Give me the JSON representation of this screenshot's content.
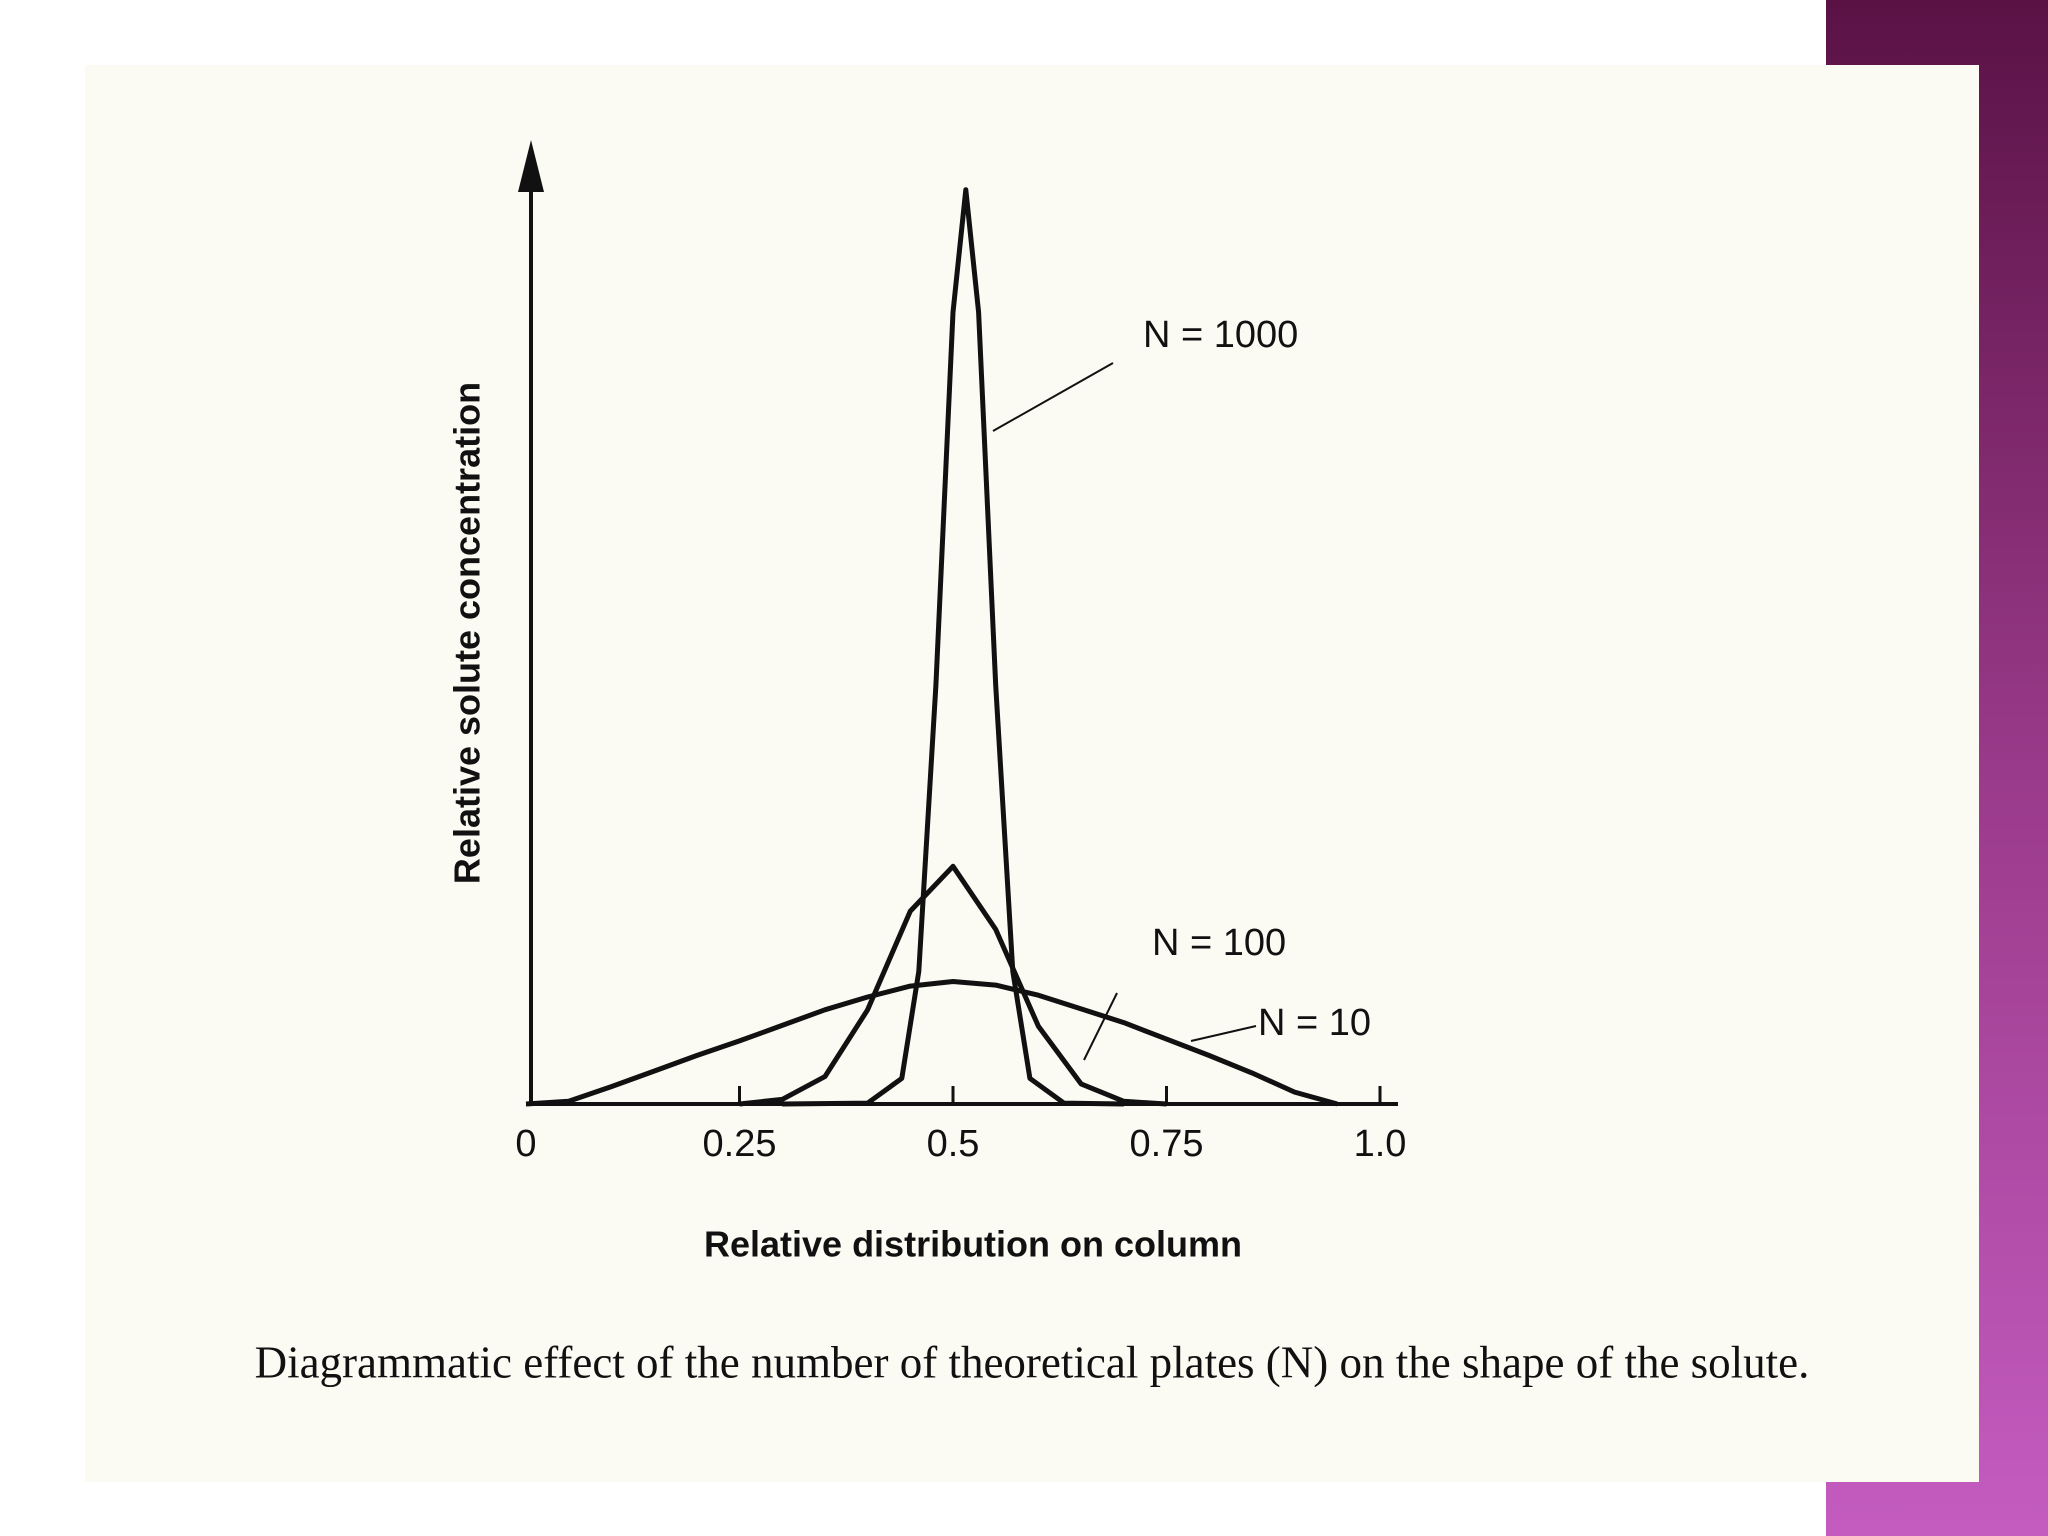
{
  "chart_data": {
    "type": "line",
    "y_axis_label": "Relative solute concentration",
    "x_axis_label": "Relative distribution on column",
    "caption": "Diagrammatic effect of the number of theoretical plates (N) on the shape of the solute.",
    "xlim": [
      0,
      1
    ],
    "ylim": [
      0,
      105
    ],
    "xticks": [
      0,
      0.25,
      0.5,
      0.75,
      {
        "value": 1,
        "label": "1.0"
      }
    ],
    "series": [
      {
        "name": "N = 1000",
        "color": "#111111",
        "x": [
          0.3,
          0.4,
          0.44,
          0.46,
          0.48,
          0.5,
          0.515,
          0.53,
          0.55,
          0.57,
          0.59,
          0.63,
          0.7
        ],
        "values": [
          0,
          0.1,
          2.8,
          14.5,
          45.8,
          86.6,
          100,
          86.6,
          45.8,
          14.5,
          2.8,
          0.1,
          0
        ]
      },
      {
        "name": "N = 100",
        "color": "#111111",
        "x": [
          0.25,
          0.3,
          0.35,
          0.4,
          0.45,
          0.5,
          0.55,
          0.6,
          0.65,
          0.7,
          0.75
        ],
        "values": [
          0,
          0.5,
          3.0,
          10.3,
          21.1,
          26,
          19.1,
          8.5,
          2.2,
          0.3,
          0
        ]
      },
      {
        "name": "N = 10",
        "color": "#111111",
        "x": [
          0,
          0.05,
          0.1,
          0.15,
          0.2,
          0.25,
          0.3,
          0.35,
          0.4,
          0.45,
          0.5,
          0.55,
          0.6,
          0.65,
          0.7,
          0.75,
          0.8,
          0.85,
          0.9,
          0.95
        ],
        "values": [
          0,
          0.3,
          1.9,
          3.6,
          5.3,
          6.9,
          8.6,
          10.3,
          11.7,
          12.9,
          13.4,
          13.0,
          11.9,
          10.4,
          8.9,
          7.1,
          5.3,
          3.4,
          1.3,
          0
        ]
      }
    ]
  }
}
